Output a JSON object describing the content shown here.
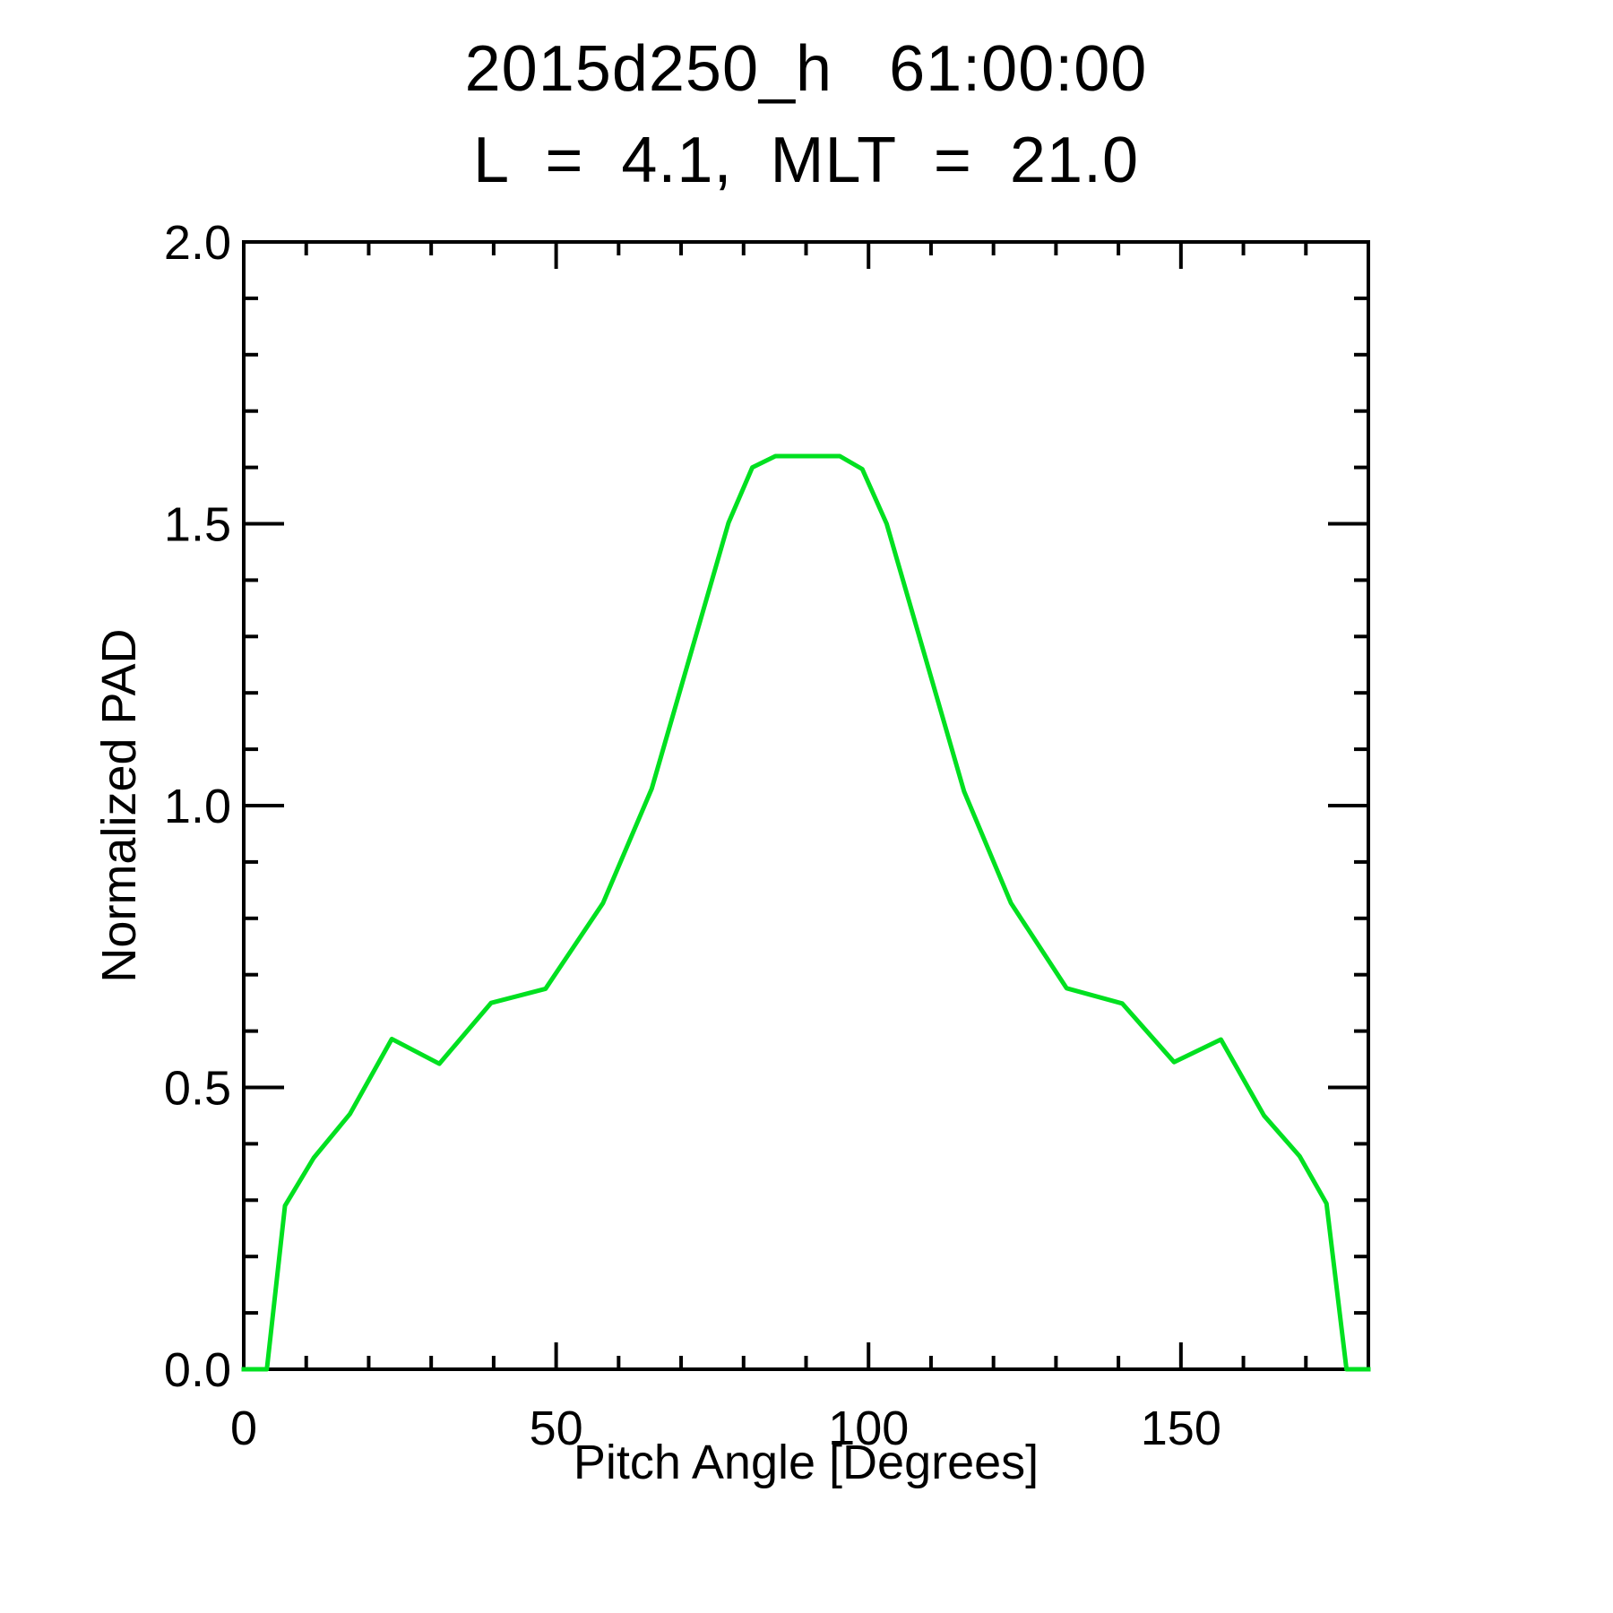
{
  "header": {
    "title": "2015d250_h   61:00:00",
    "subtitle": "L  =  4.1,  MLT  =  21.0"
  },
  "chart_data": {
    "type": "line",
    "title": "2015d250_h   61:00:00",
    "subtitle": "L  =  4.1,  MLT  =  21.0",
    "xlabel": "Pitch Angle [Degrees]",
    "ylabel": "Normalized PAD",
    "xlim": [
      0,
      180
    ],
    "ylim": [
      0,
      2.0
    ],
    "grid": false,
    "legend": "none",
    "x_axis": {
      "major_tick_values": [
        0,
        50,
        100,
        150
      ],
      "major_tick_labels": [
        "0",
        "50",
        "100",
        "150"
      ],
      "minor_tick_step": 10
    },
    "y_axis": {
      "major_tick_values": [
        0.0,
        0.5,
        1.0,
        1.5,
        2.0
      ],
      "major_tick_labels": [
        "0.0",
        "0.5",
        "1.0",
        "1.5",
        "2.0"
      ],
      "minor_tick_step": 0.1
    },
    "series": [
      {
        "name": "normalized-pad",
        "color": "#00e020",
        "points": [
          [
            0.0,
            0.0
          ],
          [
            3.7,
            0.0
          ],
          [
            6.6,
            0.29
          ],
          [
            11.2,
            0.375
          ],
          [
            17.0,
            0.453
          ],
          [
            23.7,
            0.586
          ],
          [
            31.3,
            0.542
          ],
          [
            39.6,
            0.65
          ],
          [
            48.3,
            0.675
          ],
          [
            57.5,
            0.827
          ],
          [
            65.3,
            1.03
          ],
          [
            77.6,
            1.502
          ],
          [
            81.4,
            1.6
          ],
          [
            85.1,
            1.62
          ],
          [
            95.4,
            1.62
          ],
          [
            99.0,
            1.597
          ],
          [
            102.9,
            1.5
          ],
          [
            115.3,
            1.025
          ],
          [
            122.8,
            0.827
          ],
          [
            131.7,
            0.676
          ],
          [
            140.6,
            0.649
          ],
          [
            148.9,
            0.545
          ],
          [
            156.4,
            0.585
          ],
          [
            163.3,
            0.45
          ],
          [
            169.0,
            0.378
          ],
          [
            173.3,
            0.294
          ],
          [
            176.5,
            0.0
          ],
          [
            180.0,
            0.0
          ]
        ]
      }
    ]
  },
  "style": {
    "axis_color": "#000000",
    "background": "#ffffff",
    "curve_color": "#00e020"
  }
}
